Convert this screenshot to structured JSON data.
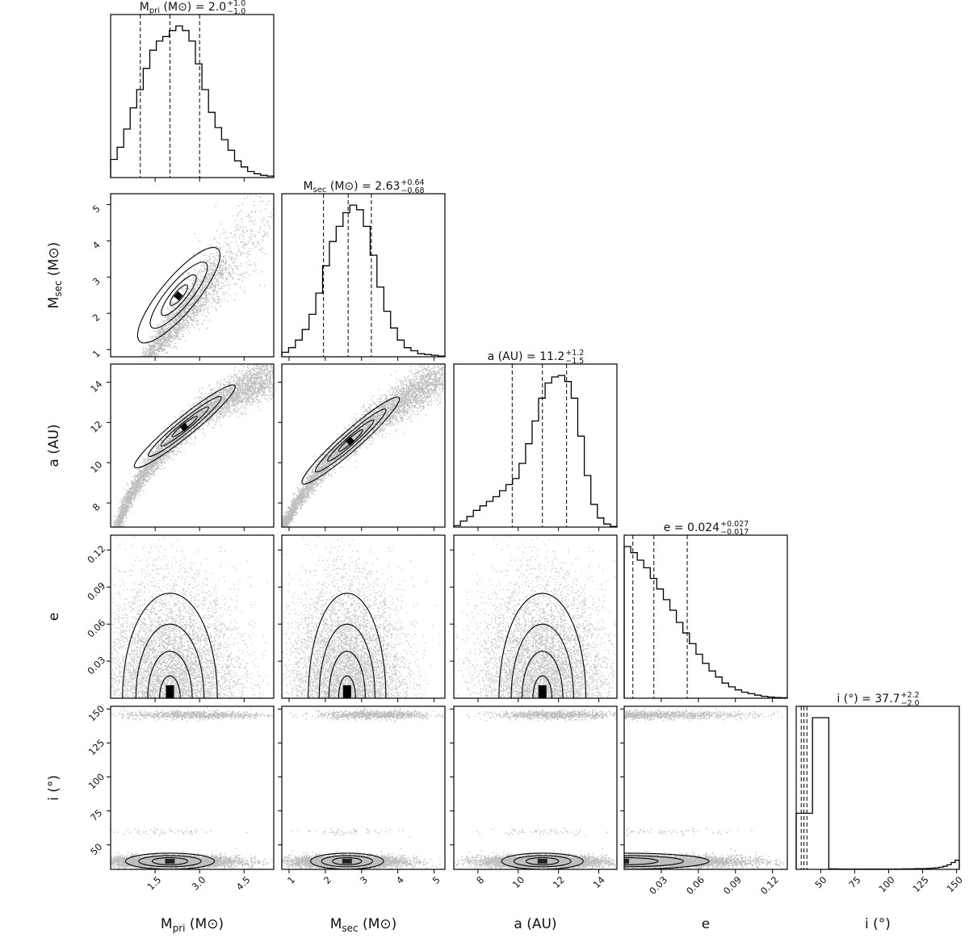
{
  "chart_data": {
    "type": "corner",
    "parameters": [
      {
        "key": "mpri",
        "label_main": "M",
        "label_sub": "pri",
        "label_unit": " (M⊙)",
        "range": [
          0.0,
          5.5
        ],
        "ticks": [
          1.5,
          3.0,
          4.5
        ],
        "tick_labels": [
          "1.5",
          "3.0",
          "4.5"
        ],
        "median": 2.0,
        "q_low": 1.0,
        "q_high": 3.0
      },
      {
        "key": "msec",
        "label_main": "M",
        "label_sub": "sec",
        "label_unit": " (M⊙)",
        "range": [
          0.8,
          5.3
        ],
        "ticks": [
          1,
          2,
          3,
          4,
          5
        ],
        "tick_labels": [
          "1",
          "2",
          "3",
          "4",
          "5"
        ],
        "median": 2.63,
        "q_low": 1.95,
        "q_high": 3.27
      },
      {
        "key": "a",
        "label_main": "a (AU)",
        "label_sub": "",
        "label_unit": "",
        "range": [
          6.8,
          14.9
        ],
        "ticks": [
          8,
          10,
          12,
          14
        ],
        "tick_labels": [
          "8",
          "10",
          "12",
          "14"
        ],
        "median": 11.2,
        "q_low": 9.7,
        "q_high": 12.4
      },
      {
        "key": "e",
        "label_main": "e",
        "label_sub": "",
        "label_unit": "",
        "range": [
          0.0,
          0.132
        ],
        "ticks": [
          0.03,
          0.06,
          0.09,
          0.12
        ],
        "tick_labels": [
          "0.03",
          "0.06",
          "0.09",
          "0.12"
        ],
        "median": 0.024,
        "q_low": 0.007,
        "q_high": 0.051
      },
      {
        "key": "i",
        "label_main": "i (°)",
        "label_sub": "",
        "label_unit": "",
        "range": [
          32,
          152
        ],
        "ticks": [
          50,
          75,
          100,
          125,
          150
        ],
        "tick_labels": [
          "50",
          "75",
          "100",
          "125",
          "150"
        ],
        "median": 37.7,
        "q_low": 35.7,
        "q_high": 39.9
      }
    ],
    "titles": [
      {
        "main": "M",
        "sub": "pri",
        "rest": " (M⊙) = 2.0",
        "up": "+1.0",
        "down": "−1.0"
      },
      {
        "main": "M",
        "sub": "sec",
        "rest": " (M⊙) = 2.63",
        "up": "+0.64",
        "down": "−0.68"
      },
      {
        "main": "a (AU) = 11.2",
        "sub": "",
        "rest": "",
        "up": "+1.2",
        "down": "−1.5"
      },
      {
        "main": "e = 0.024",
        "sub": "",
        "rest": "",
        "up": "+0.027",
        "down": "−0.017"
      },
      {
        "main": "i (°) = 37.7",
        "sub": "",
        "rest": "",
        "up": "+2.2",
        "down": "−2.0"
      }
    ],
    "histograms": [
      [
        0.12,
        0.2,
        0.32,
        0.46,
        0.58,
        0.72,
        0.84,
        0.9,
        0.93,
        0.97,
        1.0,
        0.97,
        0.9,
        0.75,
        0.58,
        0.43,
        0.33,
        0.25,
        0.18,
        0.11,
        0.07,
        0.04,
        0.025,
        0.015,
        0.01
      ],
      [
        0.03,
        0.06,
        0.11,
        0.18,
        0.28,
        0.42,
        0.6,
        0.76,
        0.86,
        0.95,
        1.0,
        0.97,
        0.86,
        0.67,
        0.46,
        0.3,
        0.19,
        0.11,
        0.06,
        0.04,
        0.02,
        0.015,
        0.01,
        0.005
      ],
      [
        0.01,
        0.04,
        0.07,
        0.11,
        0.14,
        0.17,
        0.2,
        0.24,
        0.28,
        0.32,
        0.42,
        0.55,
        0.7,
        0.85,
        0.95,
        0.99,
        1.0,
        0.96,
        0.85,
        0.6,
        0.34,
        0.15,
        0.06,
        0.02,
        0.005
      ],
      [
        1.0,
        0.96,
        0.91,
        0.86,
        0.79,
        0.72,
        0.65,
        0.58,
        0.5,
        0.43,
        0.36,
        0.29,
        0.23,
        0.18,
        0.14,
        0.1,
        0.075,
        0.055,
        0.04,
        0.03,
        0.02,
        0.013,
        0.008,
        0.005,
        0.003
      ],
      [
        0.37,
        0.37,
        0.37,
        0.37,
        1.0,
        1.0,
        1.0,
        1.0,
        0.003,
        0.003,
        0.002,
        0.002,
        0.002,
        0.002,
        0.002,
        0.002,
        0.002,
        0.002,
        0.002,
        0.002,
        0.002,
        0.002,
        0.002,
        0.002,
        0.002,
        0.002,
        0.003,
        0.003,
        0.003,
        0.004,
        0.004,
        0.005,
        0.006,
        0.008,
        0.01,
        0.014,
        0.02,
        0.03,
        0.045,
        0.06
      ]
    ],
    "pairs": {
      "1_0": {
        "kind": "ridge",
        "line": [
          1.0,
          0.6,
          5.3,
          4.8
        ],
        "width": 0.08
      },
      "2_0": {
        "kind": "curve",
        "curve": [
          [
            0.2,
            6.8
          ],
          [
            0.5,
            8.0
          ],
          [
            1.0,
            9.2
          ],
          [
            1.5,
            10.2
          ],
          [
            2.0,
            11.0
          ],
          [
            2.5,
            11.8
          ],
          [
            3.0,
            12.4
          ],
          [
            3.5,
            12.9
          ],
          [
            4.0,
            13.3
          ],
          [
            4.5,
            13.7
          ],
          [
            5.0,
            14.1
          ],
          [
            5.5,
            14.4
          ]
        ],
        "width": 0.06
      },
      "2_1": {
        "kind": "curve",
        "curve": [
          [
            0.8,
            6.8
          ],
          [
            1.2,
            8.0
          ],
          [
            1.7,
            9.3
          ],
          [
            2.2,
            10.3
          ],
          [
            2.7,
            11.1
          ],
          [
            3.2,
            11.9
          ],
          [
            3.7,
            12.6
          ],
          [
            4.2,
            13.2
          ],
          [
            4.7,
            13.8
          ],
          [
            5.2,
            14.4
          ]
        ],
        "width": 0.06
      },
      "3_0": {
        "kind": "blob",
        "cx": 2.0,
        "cy": 0.01,
        "sx": 1.0,
        "sy": 0.035
      },
      "3_1": {
        "kind": "blob",
        "cx": 2.6,
        "cy": 0.01,
        "sx": 0.67,
        "sy": 0.035
      },
      "3_2": {
        "kind": "blob",
        "cx": 11.2,
        "cy": 0.01,
        "sx": 1.35,
        "sy": 0.035
      },
      "4_0": {
        "kind": "band",
        "cx": 2.0,
        "sx": 1.0,
        "y_main": 38,
        "y_sec": 146,
        "y_rare": 60
      },
      "4_1": {
        "kind": "band",
        "cx": 2.6,
        "sx": 0.67,
        "y_main": 38,
        "y_sec": 146,
        "y_rare": 60
      },
      "4_2": {
        "kind": "band",
        "cx": 11.2,
        "sx": 1.35,
        "y_main": 38,
        "y_sec": 146,
        "y_rare": 60
      },
      "4_3": {
        "kind": "band_e",
        "y_main": 38,
        "y_sec": 146,
        "y_rare": 60
      }
    }
  }
}
